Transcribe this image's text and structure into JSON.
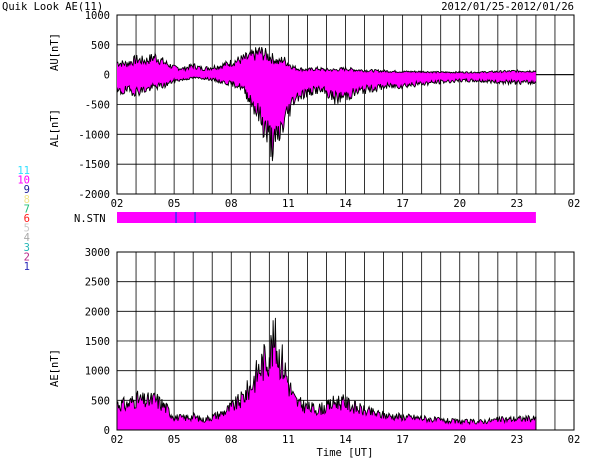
{
  "header": {
    "title": "Quik Look AE(11)",
    "date_range": "2012/01/25-2012/01/26"
  },
  "colors": {
    "fill": "#ff00ff",
    "outline": "#000000",
    "station_bar": "#ff00ff",
    "station_marker": "#3a2cff"
  },
  "station_legend": [
    {
      "label": "11",
      "color": "#33e0ff"
    },
    {
      "label": "10",
      "color": "#ff00ff"
    },
    {
      "label": "9",
      "color": "#1e1e9c"
    },
    {
      "label": "8",
      "color": "#f2e68a"
    },
    {
      "label": "7",
      "color": "#22c07a"
    },
    {
      "label": "6",
      "color": "#ff1a1a"
    },
    {
      "label": "5",
      "color": "#c8c8c8"
    },
    {
      "label": "4",
      "color": "#a8a8a8"
    },
    {
      "label": "3",
      "color": "#23b5b5"
    },
    {
      "label": "2",
      "color": "#b8288a"
    },
    {
      "label": "1",
      "color": "#2a2ab8"
    }
  ],
  "chart_data": [
    {
      "type": "area",
      "name": "AU/AL",
      "ylabel_upper": "AU[nT]",
      "ylabel_lower": "AL[nT]",
      "ylim": [
        -2000,
        1000
      ],
      "yticks": [
        1000,
        500,
        0,
        -500,
        -1000,
        -1500,
        -2000
      ],
      "xlim": [
        2,
        26
      ],
      "xticks": [
        "02",
        "05",
        "08",
        "11",
        "14",
        "17",
        "20",
        "23",
        "02"
      ],
      "grid": true,
      "t": [
        2.0,
        2.5,
        3.0,
        3.5,
        4.0,
        4.5,
        5.0,
        5.5,
        6.0,
        6.5,
        7.0,
        7.5,
        8.0,
        8.5,
        9.0,
        9.5,
        10.0,
        10.3,
        10.5,
        10.7,
        11.0,
        11.3,
        11.5,
        12.0,
        12.5,
        13.0,
        13.5,
        14.0,
        14.5,
        15.0,
        16.0,
        17.0,
        18.0,
        19.0,
        20.0,
        21.0,
        22.0,
        23.0,
        24.0
      ],
      "au": [
        200,
        180,
        250,
        230,
        300,
        200,
        120,
        100,
        150,
        100,
        120,
        150,
        200,
        250,
        300,
        380,
        300,
        250,
        200,
        260,
        180,
        120,
        100,
        80,
        100,
        80,
        80,
        100,
        80,
        70,
        60,
        50,
        50,
        40,
        40,
        40,
        50,
        60,
        60
      ],
      "al": [
        -300,
        -260,
        -280,
        -250,
        -200,
        -180,
        -100,
        -80,
        -50,
        -60,
        -80,
        -120,
        -150,
        -200,
        -400,
        -700,
        -1050,
        -1200,
        -1000,
        -850,
        -600,
        -400,
        -350,
        -300,
        -250,
        -300,
        -400,
        -350,
        -300,
        -250,
        -200,
        -180,
        -150,
        -120,
        -100,
        -100,
        -120,
        -130,
        -130
      ]
    },
    {
      "type": "bar",
      "name": "N.STN",
      "label": "N.STN",
      "station_count_full_period": 10,
      "marker_hours": [
        5.1,
        6.1
      ]
    },
    {
      "type": "area",
      "name": "AE",
      "ylabel": "AE[nT]",
      "ylim": [
        0,
        3000
      ],
      "yticks": [
        3000,
        2500,
        2000,
        1500,
        1000,
        500,
        0
      ],
      "xlim": [
        2,
        26
      ],
      "xticks": [
        "02",
        "05",
        "08",
        "11",
        "14",
        "17",
        "20",
        "23",
        "02"
      ],
      "xlabel": "Time [UT]",
      "grid": true,
      "t": [
        2.0,
        2.5,
        3.0,
        3.5,
        4.0,
        4.5,
        5.0,
        5.5,
        6.0,
        6.5,
        7.0,
        7.5,
        8.0,
        8.5,
        9.0,
        9.5,
        10.0,
        10.3,
        10.5,
        10.7,
        11.0,
        11.3,
        11.5,
        12.0,
        12.5,
        13.0,
        13.5,
        14.0,
        14.5,
        15.0,
        16.0,
        17.0,
        18.0,
        19.0,
        20.0,
        21.0,
        22.0,
        23.0,
        24.0
      ],
      "ae": [
        450,
        420,
        520,
        480,
        520,
        400,
        220,
        200,
        230,
        170,
        220,
        280,
        380,
        500,
        720,
        1050,
        1300,
        1500,
        1250,
        1150,
        800,
        520,
        450,
        380,
        350,
        380,
        480,
        460,
        380,
        320,
        250,
        220,
        200,
        160,
        140,
        140,
        170,
        190,
        190
      ]
    }
  ]
}
